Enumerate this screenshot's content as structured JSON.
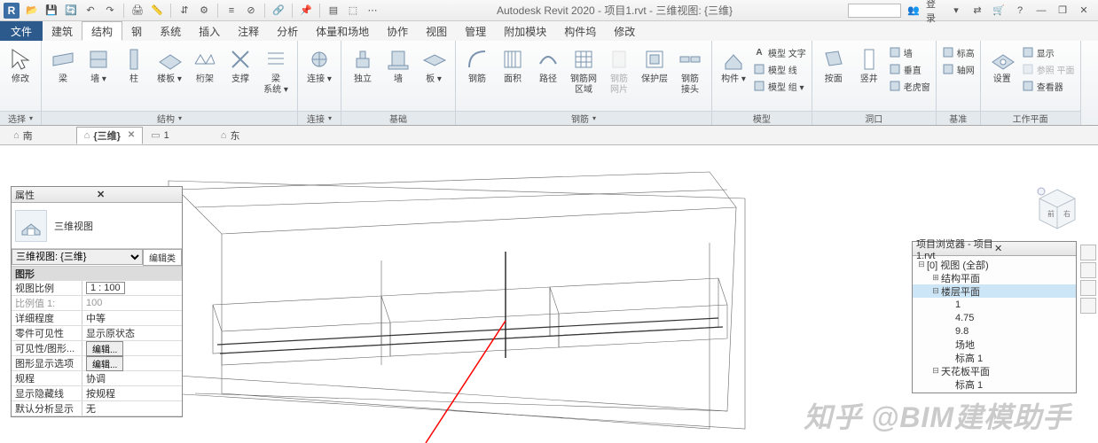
{
  "title": "Autodesk Revit 2020 - 项目1.rvt - 三维视图: {三维}",
  "login_label": "登录",
  "min_btn": "—",
  "restore_btn": "❐",
  "close_btn": "✕",
  "qat": [
    "open-icon",
    "save-icon",
    "sync-icon",
    "undo-icon",
    "redo-icon",
    "sep",
    "print-icon",
    "measure-icon",
    "sep",
    "switch-icon",
    "manage-icon",
    "sep",
    "thin-icon",
    "close-hidden-icon",
    "sep",
    "link-icon",
    "sep",
    "pin-icon",
    "sep",
    "filter-icon",
    "highlight-icon",
    "more-icon"
  ],
  "file_tab": "文件",
  "tabs": [
    "建筑",
    "结构",
    "钢",
    "系统",
    "插入",
    "注释",
    "分析",
    "体量和场地",
    "协作",
    "视图",
    "管理",
    "附加模块",
    "构件坞",
    "修改"
  ],
  "active_tab": "结构",
  "panels": [
    {
      "title": "选择",
      "drop": true,
      "items": [
        {
          "label": "修改",
          "icon": "cursor",
          "w": 34
        }
      ]
    },
    {
      "title": "结构",
      "drop": true,
      "items": [
        {
          "label": "梁",
          "icon": "beam"
        },
        {
          "label": "墙",
          "icon": "wall",
          "drop": true
        },
        {
          "label": "柱",
          "icon": "column"
        },
        {
          "label": "楼板",
          "icon": "floor",
          "drop": true
        },
        {
          "label": "桁架",
          "icon": "truss"
        },
        {
          "label": "支撑",
          "icon": "brace"
        },
        {
          "label": "梁\n系统",
          "icon": "beamsys",
          "drop": true
        }
      ]
    },
    {
      "title": "连接",
      "drop": true,
      "items": [
        {
          "label": "连接",
          "icon": "conn",
          "drop": true
        }
      ]
    },
    {
      "title": "基础",
      "items": [
        {
          "label": "独立",
          "icon": "iso"
        },
        {
          "label": "墙",
          "icon": "wallf"
        },
        {
          "label": "板",
          "icon": "slab",
          "drop": true
        }
      ]
    },
    {
      "title": "钢筋",
      "drop": true,
      "items": [
        {
          "label": "钢筋",
          "icon": "rebar"
        },
        {
          "label": "面积",
          "icon": "area"
        },
        {
          "label": "路径",
          "icon": "path"
        },
        {
          "label": "钢筋网\n区域",
          "icon": "mesh"
        },
        {
          "label": "钢筋\n网片",
          "icon": "sheet",
          "dim": true
        },
        {
          "label": "保护层",
          "icon": "cover"
        },
        {
          "label": "钢筋\n接头",
          "icon": "coupler"
        }
      ]
    },
    {
      "title": "模型",
      "items_small": true,
      "big": {
        "label": "构件",
        "icon": "comp",
        "drop": true
      },
      "small": [
        {
          "label": "模型 文字",
          "icon": "A"
        },
        {
          "label": "模型 线",
          "icon": "line"
        },
        {
          "label": "模型 组",
          "icon": "group",
          "drop": true
        }
      ]
    },
    {
      "title": "洞口",
      "items": [
        {
          "label": "按面",
          "icon": "face"
        },
        {
          "label": "竖井",
          "icon": "shaft"
        }
      ],
      "small": [
        {
          "label": "墙",
          "icon": "wall-o"
        },
        {
          "label": "垂直",
          "icon": "vert"
        },
        {
          "label": "老虎窗",
          "icon": "dormer"
        }
      ]
    },
    {
      "title": "基准",
      "items": [],
      "small": [
        {
          "label": "标高",
          "icon": "level"
        },
        {
          "label": "轴网",
          "icon": "grid"
        }
      ]
    },
    {
      "title": "工作平面",
      "items": [
        {
          "label": "设置",
          "icon": "set"
        }
      ],
      "small": [
        {
          "label": "显示",
          "icon": "show"
        },
        {
          "label": "参照 平面",
          "icon": "ref",
          "dim": true
        },
        {
          "label": "查看器",
          "icon": "viewer"
        }
      ]
    }
  ],
  "view_tabs": [
    {
      "label": "南",
      "home": true
    },
    {
      "label": "{三维}",
      "home": true,
      "active": true,
      "closeable": true
    },
    {
      "label": "1",
      "home": false
    },
    {
      "label": "东",
      "home": true
    }
  ],
  "props": {
    "title": "属性",
    "type": "三维视图",
    "selector": "三维视图: {三维}",
    "edit_btn": "编辑类",
    "group": "图形",
    "rows": [
      {
        "l": "视图比例",
        "v": "1 : 100",
        "boxed": true
      },
      {
        "l": "比例值 1:",
        "v": "100",
        "dim": true
      },
      {
        "l": "详细程度",
        "v": "中等"
      },
      {
        "l": "零件可见性",
        "v": "显示原状态"
      },
      {
        "l": "可见性/图形...",
        "btn": "编辑..."
      },
      {
        "l": "图形显示选项",
        "btn": "编辑..."
      },
      {
        "l": "规程",
        "v": "协调"
      },
      {
        "l": "显示隐藏线",
        "v": "按规程"
      },
      {
        "l": "默认分析显示",
        "v": "无"
      }
    ]
  },
  "browser": {
    "title": "项目浏览器 - 项目1.rvt",
    "nodes": [
      {
        "d": 0,
        "tw": "⊟",
        "label": "[0] 视图 (全部)"
      },
      {
        "d": 1,
        "tw": "⊞",
        "label": "结构平面"
      },
      {
        "d": 1,
        "tw": "⊟",
        "label": "楼层平面",
        "sel": true
      },
      {
        "d": 2,
        "tw": "",
        "label": "1"
      },
      {
        "d": 2,
        "tw": "",
        "label": "4.75"
      },
      {
        "d": 2,
        "tw": "",
        "label": "9.8"
      },
      {
        "d": 2,
        "tw": "",
        "label": "场地"
      },
      {
        "d": 2,
        "tw": "",
        "label": "标高 1"
      },
      {
        "d": 1,
        "tw": "⊟",
        "label": "天花板平面"
      },
      {
        "d": 2,
        "tw": "",
        "label": "标高 1"
      }
    ]
  },
  "watermark": "知乎 @BIM建模助手",
  "colors": {
    "accent": "#3b6ea5",
    "ribbon_bg": "#eef1f4",
    "red": "#ff0000"
  }
}
